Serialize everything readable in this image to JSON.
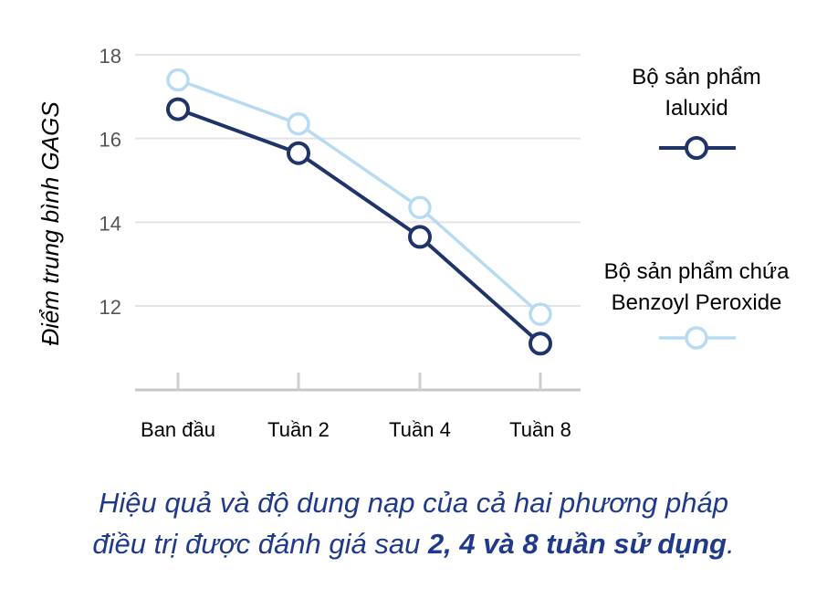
{
  "chart_data": {
    "type": "line",
    "categories": [
      "Ban đầu",
      "Tuần 2",
      "Tuần 4",
      "Tuần 8"
    ],
    "series": [
      {
        "name": "Bộ sản phẩm Ialuxid",
        "legend_lines": [
          "Bộ sản phẩm",
          "Ialuxid"
        ],
        "values": [
          16.7,
          15.65,
          13.65,
          11.1
        ],
        "color": "#1f3468"
      },
      {
        "name": "Bộ sản phẩm chứa Benzoyl Peroxide",
        "legend_lines": [
          "Bộ sản phẩm chứa",
          "Benzoyl Peroxide"
        ],
        "values": [
          17.4,
          16.35,
          14.35,
          11.8
        ],
        "color": "#b7dbf0"
      }
    ],
    "ylabel": "Điểm trung bình GAGS",
    "yticks": [
      12,
      14,
      16,
      18
    ],
    "ylim": [
      10.2,
      18
    ],
    "grid": true,
    "legend_position": "right"
  },
  "caption": {
    "line1": "Hiệu quả và độ dung nạp của cả hai phương pháp",
    "line2_prefix": "điều trị được đánh giá sau ",
    "line2_bold": "2, 4 và 8 tuần sử dụng",
    "line2_suffix": "."
  }
}
